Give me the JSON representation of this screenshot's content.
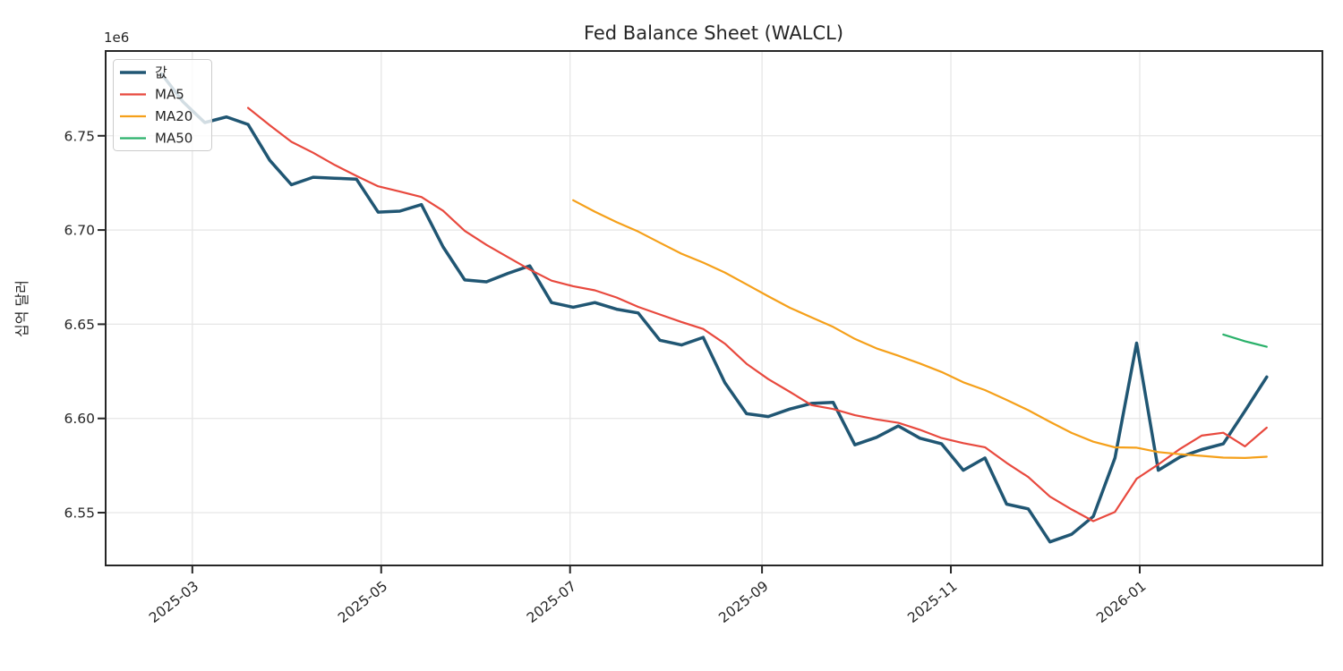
{
  "chart_data": {
    "type": "line",
    "title": "Fed Balance Sheet (WALCL)",
    "ylabel": "십억 달러",
    "y_offset_label": "1e6",
    "grid": true,
    "legend_position": "upper left",
    "x_dates": [
      "2025-02-19",
      "2025-02-26",
      "2025-03-05",
      "2025-03-12",
      "2025-03-19",
      "2025-03-26",
      "2025-04-02",
      "2025-04-09",
      "2025-04-16",
      "2025-04-23",
      "2025-04-30",
      "2025-05-07",
      "2025-05-14",
      "2025-05-21",
      "2025-05-28",
      "2025-06-04",
      "2025-06-11",
      "2025-06-18",
      "2025-06-25",
      "2025-07-02",
      "2025-07-09",
      "2025-07-16",
      "2025-07-23",
      "2025-07-30",
      "2025-08-06",
      "2025-08-13",
      "2025-08-20",
      "2025-08-27",
      "2025-09-03",
      "2025-09-10",
      "2025-09-17",
      "2025-09-24",
      "2025-10-01",
      "2025-10-08",
      "2025-10-15",
      "2025-10-22",
      "2025-10-29",
      "2025-11-05",
      "2025-11-12",
      "2025-11-19",
      "2025-11-26",
      "2025-12-03",
      "2025-12-10",
      "2025-12-17",
      "2025-12-24",
      "2025-12-31",
      "2026-01-07",
      "2026-01-14",
      "2026-01-21",
      "2026-01-28",
      "2026-02-04",
      "2026-02-11"
    ],
    "series": [
      {
        "name": "값",
        "color": "#205673",
        "line_width": 3.5,
        "values": [
          6783000,
          6768000,
          6757000,
          6760000,
          6756000,
          6737000,
          6724000,
          6728000,
          6727500,
          6727000,
          6709500,
          6710000,
          6713500,
          6691000,
          6673500,
          6672500,
          6677000,
          6681000,
          6661500,
          6659000,
          6661500,
          6658000,
          6656000,
          6641500,
          6639000,
          6643000,
          6619000,
          6602500,
          6601000,
          6605000,
          6608000,
          6608500,
          6586000,
          6590000,
          6596000,
          6589500,
          6586500,
          6572500,
          6579000,
          6554500,
          6552000,
          6534500,
          6538500,
          6548000,
          6579000,
          6640000,
          6572500,
          6579500,
          6583500,
          6586500,
          6604000,
          6622000
        ]
      },
      {
        "name": "MA5",
        "color": "#e8493e",
        "line_width": 2.2,
        "ma_window": 5,
        "values_derived_from": "값"
      },
      {
        "name": "MA20",
        "color": "#f5a01a",
        "line_width": 2.2,
        "ma_window": 20,
        "values_derived_from": "값"
      },
      {
        "name": "MA50",
        "color": "#2ab16a",
        "line_width": 2.2,
        "ma_window": 50,
        "values_derived_from": "값"
      }
    ],
    "xlim": [
      "2025-02-01",
      "2026-03-01"
    ],
    "ylim": [
      6522000,
      6795000
    ],
    "xticks": [
      {
        "date": "2025-03-01",
        "label": "2025-03"
      },
      {
        "date": "2025-05-01",
        "label": "2025-05"
      },
      {
        "date": "2025-07-01",
        "label": "2025-07"
      },
      {
        "date": "2025-09-01",
        "label": "2025-09"
      },
      {
        "date": "2025-11-01",
        "label": "2025-11"
      },
      {
        "date": "2026-01-01",
        "label": "2026-01"
      }
    ],
    "yticks": [
      {
        "value": 6550000,
        "label": "6.55"
      },
      {
        "value": 6600000,
        "label": "6.60"
      },
      {
        "value": 6650000,
        "label": "6.65"
      },
      {
        "value": 6700000,
        "label": "6.70"
      },
      {
        "value": 6750000,
        "label": "6.75"
      }
    ],
    "colors": {
      "grid": "#e6e6e6",
      "spine": "#262626",
      "tick_label": "#262626",
      "legend_border": "#cccccc",
      "legend_background": "#ffffff"
    }
  }
}
